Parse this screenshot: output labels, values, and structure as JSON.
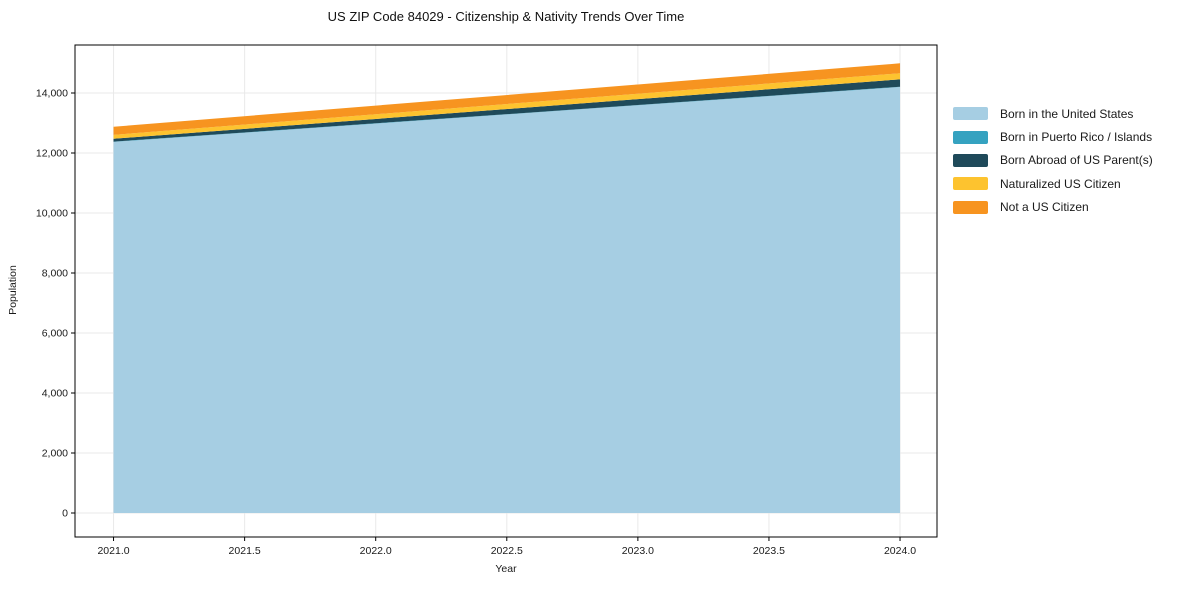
{
  "page": {
    "background_color": "#ffffff"
  },
  "chart_data": {
    "type": "area",
    "stacked": true,
    "title": "US ZIP Code 84029 - Citizenship & Nativity Trends Over Time",
    "xlabel": "Year",
    "ylabel": "Population",
    "x": [
      2021,
      2022,
      2023,
      2024
    ],
    "series": [
      {
        "name": "Born in the United States",
        "color": "#a6cee3",
        "values": [
          12370,
          12980,
          13590,
          14200
        ]
      },
      {
        "name": "Born in Puerto Rico / Islands",
        "color": "#35a2c0",
        "values": [
          10,
          10,
          10,
          10
        ]
      },
      {
        "name": "Born Abroad of US Parent(s)",
        "color": "#1f4a5a",
        "values": [
          95,
          145,
          195,
          245
        ]
      },
      {
        "name": "Naturalized US Citizen",
        "color": "#fdc32f",
        "values": [
          130,
          155,
          180,
          205
        ]
      },
      {
        "name": "Not a US Citizen",
        "color": "#f79420",
        "values": [
          270,
          290,
          310,
          330
        ]
      }
    ],
    "totals": [
      12875,
      13580,
      14285,
      14990
    ],
    "xticks": {
      "values": [
        2021.0,
        2021.5,
        2022.0,
        2022.5,
        2023.0,
        2023.5,
        2024.0
      ],
      "labels": [
        "2021.0",
        "2021.5",
        "2022.0",
        "2022.5",
        "2023.0",
        "2023.5",
        "2024.0"
      ]
    },
    "yticks": {
      "values": [
        0,
        2000,
        4000,
        6000,
        8000,
        10000,
        12000,
        14000
      ],
      "labels": [
        "0",
        "2,000",
        "4,000",
        "6,000",
        "8,000",
        "10,000",
        "12,000",
        "14,000"
      ]
    },
    "xlim": [
      2020.853,
      2024.141
    ],
    "ylim": [
      -800,
      15600
    ],
    "grid": true,
    "grid_color": "#e9e9e9",
    "axis_color": "#000000",
    "tick_label_color": "#1a1a1a",
    "legend_position": "right outside"
  }
}
